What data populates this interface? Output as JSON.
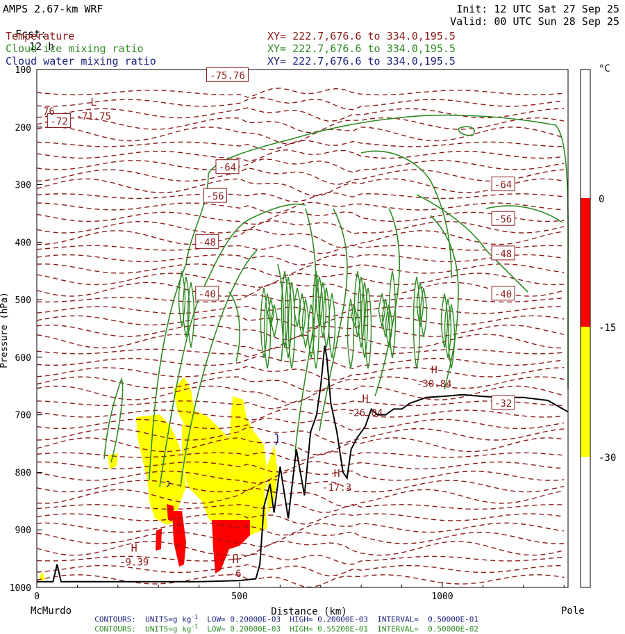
{
  "header": {
    "title": "AMPS 2.67-km WRF",
    "fcst_label": "Fcst:",
    "fcst_value": "12 h",
    "init": "Init: 12 UTC Sat 27 Sep 25",
    "valid": "Valid: 00 UTC Sun 28 Sep 25"
  },
  "fields": [
    {
      "name": "Temperature",
      "xy": "XY= 222.7,676.6 to 334.0,195.5",
      "color": "#8b1a1a"
    },
    {
      "name": "Cloud ice mixing ratio",
      "xy": "XY= 222.7,676.6 to 334.0,195.5",
      "color": "#2e8b22"
    },
    {
      "name": "Cloud water mixing ratio",
      "xy": "XY= 222.7,676.6 to 334.0,195.5",
      "color": "#1a237e"
    }
  ],
  "footer": {
    "left_station": "McMurdo",
    "right_station": "Pole",
    "contours_water": "CONTOURS:  UNITS=g kg",
    "contours_water_rest": "  LOW= 0.20000E-03  HIGH= 0.20000E-03  INTERVAL=  0.50000E-01",
    "contours_ice": "CONTOURS:  UNITS=g kg",
    "contours_ice_rest": "  LOW= 0.20000E-03  HIGH= 0.55200E-01  INTERVAL=  0.50000E-02"
  },
  "colorbar": {
    "unit": "°C",
    "ticks": [
      "0",
      "-15",
      "-30"
    ],
    "colors": {
      "above_0": "#ffffff",
      "0_to_-15": "#ff0000",
      "-15_to_-30": "#ffff00",
      "below_-30": "#ffffff"
    }
  },
  "chart_data": {
    "type": "contour-cross-section",
    "xlabel": "Distance (km)",
    "ylabel": "Pressure (hPa)",
    "xlim": [
      0,
      1310
    ],
    "ylim": [
      1000,
      100
    ],
    "x_ticks": [
      0,
      500,
      1000
    ],
    "y_ticks": [
      100,
      200,
      300,
      400,
      500,
      600,
      700,
      800,
      900,
      1000
    ],
    "temperature_labels": [
      {
        "x": 55,
        "p": 190,
        "text": "-72"
      },
      {
        "x": 470,
        "p": 110,
        "text": "-75.76"
      },
      {
        "x": 470,
        "p": 270,
        "text": "-64"
      },
      {
        "x": 1150,
        "p": 300,
        "text": "-64"
      },
      {
        "x": 440,
        "p": 320,
        "text": "-56"
      },
      {
        "x": 1150,
        "p": 360,
        "text": "-56"
      },
      {
        "x": 420,
        "p": 400,
        "text": "-48"
      },
      {
        "x": 1150,
        "p": 420,
        "text": "-48"
      },
      {
        "x": 420,
        "p": 490,
        "text": "-40"
      },
      {
        "x": 1150,
        "p": 490,
        "text": "-40"
      },
      {
        "x": 1150,
        "p": 680,
        "text": "-32"
      }
    ],
    "extrema": [
      {
        "type": "L",
        "value": "-71.75",
        "x": 140,
        "p": 175
      },
      {
        "type": "H",
        "value": "-30.84",
        "x": 980,
        "p": 640
      },
      {
        "type": "H",
        "value": "-26.04",
        "x": 810,
        "p": 690
      },
      {
        "type": "H",
        "value": "-17.3",
        "x": 740,
        "p": 820
      },
      {
        "type": "H",
        "value": "-9.39",
        "x": 240,
        "p": 950
      },
      {
        "type": "H",
        "value": "-6",
        "x": 490,
        "p": 970
      }
    ],
    "shading_bins": [
      {
        "range": [
          0,
          -15
        ],
        "color": "#ff0000"
      },
      {
        "range": [
          -15,
          -30
        ],
        "color": "#ffff00"
      }
    ],
    "terrain": [
      [
        0,
        990
      ],
      [
        20,
        990
      ],
      [
        40,
        990
      ],
      [
        50,
        960
      ],
      [
        60,
        990
      ],
      [
        90,
        990
      ],
      [
        120,
        990
      ],
      [
        200,
        990
      ],
      [
        300,
        990
      ],
      [
        400,
        990
      ],
      [
        500,
        988
      ],
      [
        540,
        985
      ],
      [
        550,
        960
      ],
      [
        560,
        860
      ],
      [
        575,
        820
      ],
      [
        585,
        870
      ],
      [
        600,
        790
      ],
      [
        620,
        880
      ],
      [
        640,
        760
      ],
      [
        660,
        840
      ],
      [
        675,
        730
      ],
      [
        690,
        700
      ],
      [
        700,
        650
      ],
      [
        710,
        580
      ],
      [
        715,
        600
      ],
      [
        725,
        680
      ],
      [
        740,
        730
      ],
      [
        755,
        800
      ],
      [
        765,
        810
      ],
      [
        775,
        760
      ],
      [
        790,
        740
      ],
      [
        810,
        720
      ],
      [
        825,
        690
      ],
      [
        840,
        700
      ],
      [
        860,
        700
      ],
      [
        880,
        690
      ],
      [
        900,
        690
      ],
      [
        920,
        680
      ],
      [
        960,
        670
      ],
      [
        1000,
        668
      ],
      [
        1050,
        665
      ],
      [
        1100,
        668
      ],
      [
        1150,
        670
      ],
      [
        1200,
        670
      ],
      [
        1260,
        675
      ],
      [
        1310,
        695
      ]
    ]
  }
}
